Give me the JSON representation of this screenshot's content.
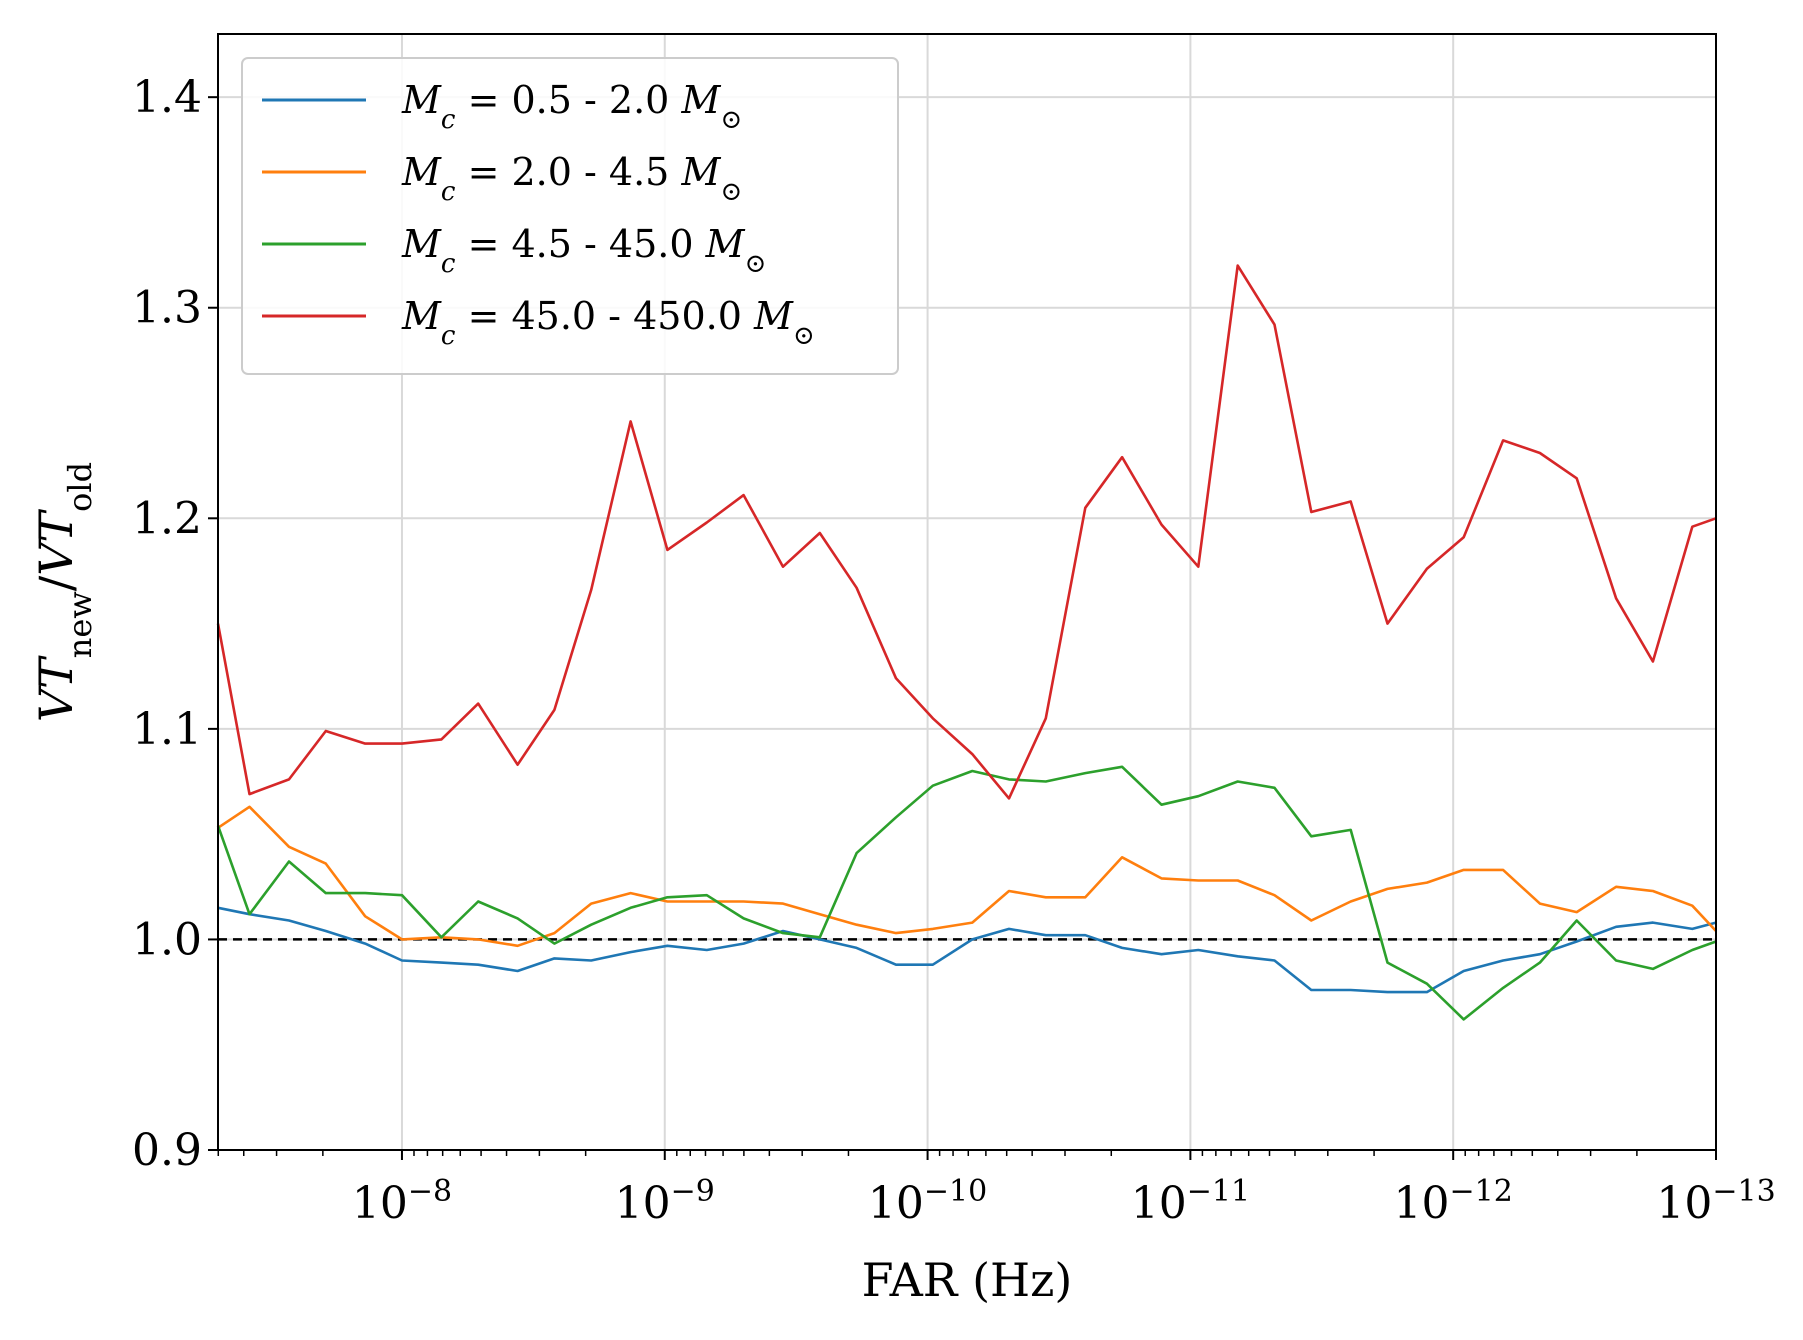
{
  "chart_data": {
    "type": "line",
    "title": "",
    "xlabel": "FAR (Hz)",
    "ylabel_base": "VT",
    "ylabel_num_sub": "new",
    "ylabel_den_sub": "old",
    "x_scale": "log",
    "x_reversed": true,
    "xlim_exponent": [
      -7.3,
      -13
    ],
    "ylim": [
      0.9,
      1.43
    ],
    "x_ticks": [
      {
        "exp": -8,
        "label": "10",
        "sup": "−8"
      },
      {
        "exp": -9,
        "label": "10",
        "sup": "−9"
      },
      {
        "exp": -10,
        "label": "10",
        "sup": "−10"
      },
      {
        "exp": -11,
        "label": "10",
        "sup": "−11"
      },
      {
        "exp": -12,
        "label": "10",
        "sup": "−12"
      },
      {
        "exp": -13,
        "label": "10",
        "sup": "−13"
      }
    ],
    "y_ticks": [
      {
        "value": 0.9,
        "label": "0.9"
      },
      {
        "value": 1.0,
        "label": "1.0"
      },
      {
        "value": 1.1,
        "label": "1.1"
      },
      {
        "value": 1.2,
        "label": "1.2"
      },
      {
        "value": 1.3,
        "label": "1.3"
      },
      {
        "value": 1.4,
        "label": "1.4"
      }
    ],
    "grid": true,
    "legend_position": "top-left",
    "reference_line": {
      "y": 1.0,
      "style": "dashed",
      "color": "#000000"
    },
    "x_exponents": [
      -7.3,
      -7.42,
      -7.57,
      -7.71,
      -7.86,
      -8.0,
      -8.15,
      -8.29,
      -8.44,
      -8.58,
      -8.72,
      -8.87,
      -9.01,
      -9.16,
      -9.3,
      -9.45,
      -9.59,
      -9.73,
      -9.88,
      -10.02,
      -10.17,
      -10.31,
      -10.45,
      -10.6,
      -10.74,
      -10.89,
      -11.03,
      -11.18,
      -11.32,
      -11.46,
      -11.61,
      -11.75,
      -11.9,
      -12.04,
      -12.19,
      -12.33,
      -12.47,
      -12.62,
      -12.76,
      -12.91,
      -13.0
    ],
    "series": [
      {
        "name_prefix": "M",
        "name_sub": "c",
        "name_range": " = 0.5 - 2.0 ",
        "name_unit": "M",
        "name_unit_sub": "⊙",
        "color": "#1f77b4",
        "values": [
          1.015,
          1.012,
          1.009,
          1.004,
          0.998,
          0.99,
          0.989,
          0.988,
          0.985,
          0.991,
          0.99,
          0.994,
          0.997,
          0.995,
          0.998,
          1.004,
          1.0,
          0.996,
          0.988,
          0.988,
          1.0,
          1.005,
          1.002,
          1.002,
          0.996,
          0.993,
          0.995,
          0.992,
          0.99,
          0.976,
          0.976,
          0.975,
          0.975,
          0.985,
          0.99,
          0.993,
          0.999,
          1.006,
          1.008,
          1.005,
          1.008
        ]
      },
      {
        "name_prefix": "M",
        "name_sub": "c",
        "name_range": " = 2.0 - 4.5 ",
        "name_unit": "M",
        "name_unit_sub": "⊙",
        "color": "#ff7f0e",
        "values": [
          1.053,
          1.063,
          1.044,
          1.036,
          1.011,
          1.0,
          1.001,
          1.0,
          0.997,
          1.003,
          1.017,
          1.022,
          1.018,
          1.018,
          1.018,
          1.017,
          1.012,
          1.007,
          1.003,
          1.005,
          1.008,
          1.023,
          1.02,
          1.02,
          1.039,
          1.029,
          1.028,
          1.028,
          1.021,
          1.009,
          1.018,
          1.024,
          1.027,
          1.033,
          1.033,
          1.017,
          1.013,
          1.025,
          1.023,
          1.016,
          1.004
        ]
      },
      {
        "name_prefix": "M",
        "name_sub": "c",
        "name_range": " = 4.5 - 45.0 ",
        "name_unit": "M",
        "name_unit_sub": "⊙",
        "color": "#2ca02c",
        "values": [
          1.054,
          1.012,
          1.037,
          1.022,
          1.022,
          1.021,
          1.001,
          1.018,
          1.01,
          0.998,
          1.007,
          1.015,
          1.02,
          1.021,
          1.01,
          1.003,
          1.001,
          1.041,
          1.058,
          1.073,
          1.08,
          1.076,
          1.075,
          1.079,
          1.082,
          1.064,
          1.068,
          1.075,
          1.072,
          1.049,
          1.052,
          0.989,
          0.979,
          0.962,
          0.977,
          0.989,
          1.009,
          0.99,
          0.986,
          0.995,
          0.999
        ]
      },
      {
        "name_prefix": "M",
        "name_sub": "c",
        "name_range": " = 45.0 - 450.0 ",
        "name_unit": "M",
        "name_unit_sub": "⊙",
        "color": "#d62728",
        "values": [
          1.15,
          1.069,
          1.076,
          1.099,
          1.093,
          1.093,
          1.095,
          1.112,
          1.083,
          1.109,
          1.166,
          1.246,
          1.185,
          1.198,
          1.211,
          1.177,
          1.193,
          1.167,
          1.124,
          1.105,
          1.088,
          1.067,
          1.105,
          1.205,
          1.229,
          1.197,
          1.177,
          1.32,
          1.292,
          1.203,
          1.208,
          1.15,
          1.176,
          1.191,
          1.237,
          1.231,
          1.219,
          1.162,
          1.132,
          1.196,
          1.2
        ]
      }
    ]
  }
}
